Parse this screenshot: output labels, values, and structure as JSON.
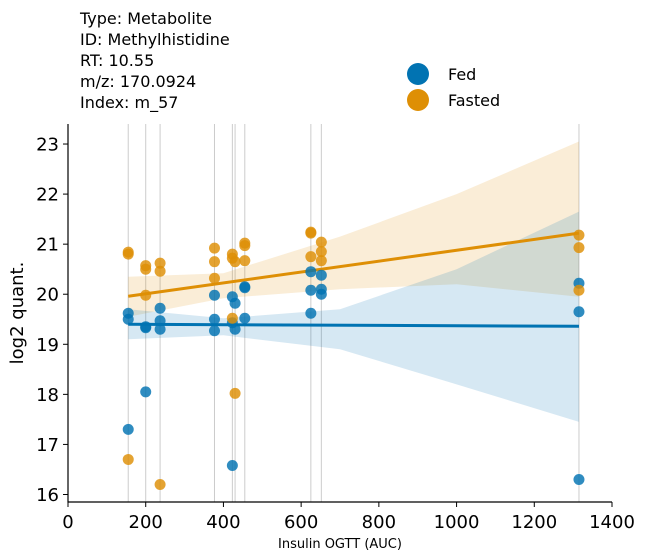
{
  "info": {
    "type_line": "Type: Metabolite",
    "id_line": "ID: Methylhistidine",
    "rt_line": "RT: 10.55",
    "mz_line": "m/z: 170.0924",
    "index_line": "Index: m_57"
  },
  "colors": {
    "fed": "#0173b2",
    "fasted": "#de8f05",
    "vline": "#cccccc",
    "axis": "#000000"
  },
  "chart_data": {
    "type": "scatter",
    "xlabel": "Insulin OGTT (AUC)",
    "ylabel": "log2 quant.",
    "xlim": [
      0,
      1400
    ],
    "ylim": [
      15.85,
      23.4
    ],
    "xticks": [
      0,
      200,
      400,
      600,
      800,
      1000,
      1200,
      1400
    ],
    "yticks": [
      16,
      17,
      18,
      19,
      20,
      21,
      22,
      23
    ],
    "grid": false,
    "legend_position": "top-right (outside plot)",
    "vlines": [
      155,
      200,
      237,
      377,
      423,
      430,
      455,
      625,
      652,
      1315
    ],
    "series": [
      {
        "name": "Fed",
        "color": "#0173b2",
        "points": [
          [
            155,
            19.62
          ],
          [
            155,
            19.5
          ],
          [
            155,
            17.3
          ],
          [
            200,
            19.35
          ],
          [
            200,
            19.33
          ],
          [
            200,
            18.05
          ],
          [
            237,
            19.72
          ],
          [
            237,
            19.47
          ],
          [
            237,
            19.3
          ],
          [
            377,
            19.98
          ],
          [
            377,
            19.5
          ],
          [
            377,
            19.27
          ],
          [
            423,
            19.95
          ],
          [
            423,
            19.43
          ],
          [
            423,
            16.58
          ],
          [
            430,
            19.82
          ],
          [
            430,
            19.3
          ],
          [
            455,
            20.15
          ],
          [
            455,
            20.13
          ],
          [
            455,
            19.52
          ],
          [
            625,
            20.45
          ],
          [
            625,
            20.08
          ],
          [
            625,
            19.62
          ],
          [
            652,
            20.38
          ],
          [
            652,
            20.1
          ],
          [
            652,
            20.0
          ],
          [
            1315,
            20.22
          ],
          [
            1315,
            19.65
          ],
          [
            1315,
            16.3
          ]
        ],
        "fit": [
          [
            155,
            19.4
          ],
          [
            1315,
            19.36
          ]
        ],
        "ci_upper": [
          [
            155,
            19.7
          ],
          [
            400,
            19.52
          ],
          [
            700,
            19.7
          ],
          [
            1000,
            20.5
          ],
          [
            1315,
            21.65
          ]
        ],
        "ci_lower": [
          [
            155,
            19.1
          ],
          [
            400,
            19.18
          ],
          [
            700,
            18.9
          ],
          [
            1000,
            18.2
          ],
          [
            1315,
            17.45
          ]
        ]
      },
      {
        "name": "Fasted",
        "color": "#de8f05",
        "points": [
          [
            155,
            20.84
          ],
          [
            155,
            20.8
          ],
          [
            155,
            16.7
          ],
          [
            200,
            20.57
          ],
          [
            200,
            20.5
          ],
          [
            200,
            19.98
          ],
          [
            237,
            20.62
          ],
          [
            237,
            20.46
          ],
          [
            237,
            16.2
          ],
          [
            377,
            20.92
          ],
          [
            377,
            20.65
          ],
          [
            377,
            20.32
          ],
          [
            423,
            20.8
          ],
          [
            423,
            20.72
          ],
          [
            423,
            19.52
          ],
          [
            430,
            20.65
          ],
          [
            430,
            18.02
          ],
          [
            455,
            21.02
          ],
          [
            455,
            20.97
          ],
          [
            455,
            20.67
          ],
          [
            625,
            21.24
          ],
          [
            625,
            21.22
          ],
          [
            625,
            20.75
          ],
          [
            652,
            21.04
          ],
          [
            652,
            20.85
          ],
          [
            652,
            20.67
          ],
          [
            1315,
            21.18
          ],
          [
            1315,
            20.93
          ],
          [
            1315,
            20.08
          ]
        ],
        "fit": [
          [
            155,
            19.96
          ],
          [
            1315,
            21.22
          ]
        ],
        "ci_upper": [
          [
            155,
            20.35
          ],
          [
            400,
            20.42
          ],
          [
            700,
            21.15
          ],
          [
            1000,
            22.0
          ],
          [
            1315,
            23.05
          ]
        ],
        "ci_lower": [
          [
            155,
            19.55
          ],
          [
            400,
            19.92
          ],
          [
            700,
            20.1
          ],
          [
            1000,
            20.2
          ],
          [
            1315,
            19.95
          ]
        ]
      }
    ]
  }
}
